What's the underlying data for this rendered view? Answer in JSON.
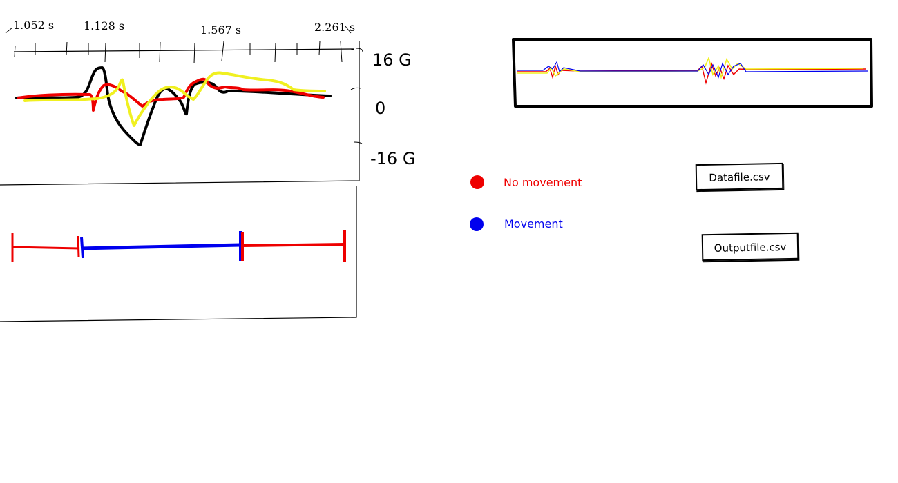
{
  "main_plot": {
    "time_labels": [
      "1.052 s",
      "1.128 s",
      "1.567 s",
      "2.261 s"
    ],
    "amplitude_labels": {
      "top": "16 G",
      "middle": "0",
      "bottom": "-16 G"
    },
    "series_colors": {
      "black": "#000000",
      "red": "#ee0000",
      "yellow": "#f0f020"
    }
  },
  "legend": {
    "items": [
      {
        "label": "No movement",
        "color": "#ee0000"
      },
      {
        "label": "Movement",
        "color": "#0000ee"
      }
    ]
  },
  "files": {
    "data_file": "Datafile.csv",
    "output_file": "Outputfile.csv"
  },
  "colors": {
    "no_movement": "#ee0000",
    "movement": "#0000ee",
    "overview_yellow": "#f0f020"
  }
}
